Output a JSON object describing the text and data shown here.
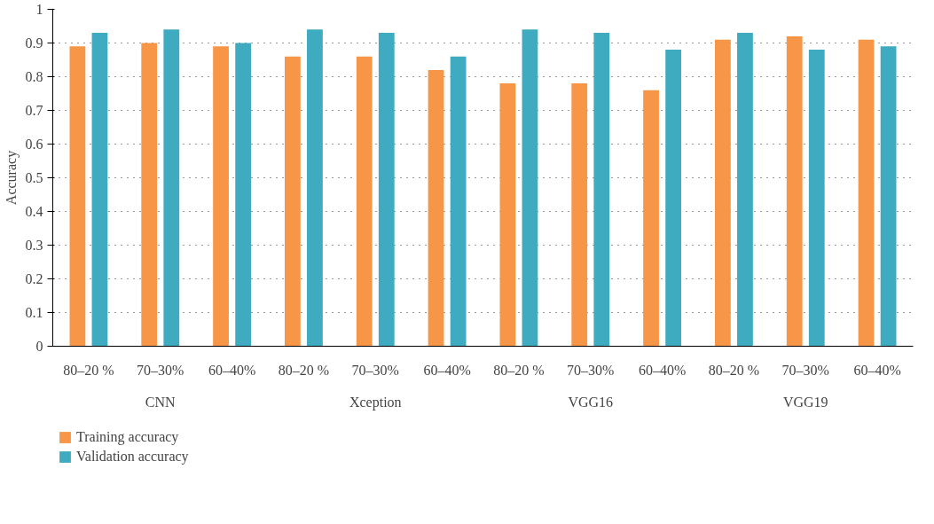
{
  "chart_data": {
    "type": "bar",
    "ylabel": "Accuracy",
    "categories": [
      "80–20 %",
      "70–30%",
      "60–40%",
      "80–20 %",
      "70–30%",
      "60–40%",
      "80–20 %",
      "70–30%",
      "60–40%",
      "80–20 %",
      "70–30%",
      "60–40%"
    ],
    "annotations": [
      "CNN",
      "Xception",
      "VGG16",
      "VGG19"
    ],
    "series": [
      {
        "name": "Training accuracy",
        "color": "#f79646",
        "values": [
          0.89,
          0.9,
          0.89,
          0.86,
          0.86,
          0.82,
          0.78,
          0.78,
          0.76,
          0.91,
          0.92,
          0.91
        ]
      },
      {
        "name": "Validation accuracy",
        "color": "#3eabc0",
        "values": [
          0.93,
          0.94,
          0.9,
          0.94,
          0.93,
          0.86,
          0.94,
          0.93,
          0.88,
          0.93,
          0.88,
          0.89
        ]
      }
    ],
    "ylim": [
      0,
      1
    ],
    "yticks": [
      0,
      {
        "value": 0.1,
        "label": "0.1"
      },
      {
        "value": 0.2,
        "label": "0.2"
      },
      {
        "value": 0.3,
        "label": "0.3"
      },
      {
        "value": 0.4,
        "label": "0.4"
      },
      {
        "value": 0.5,
        "label": "0.5"
      },
      {
        "value": 0.6,
        "label": "0.6"
      },
      {
        "value": 0.7,
        "label": "0.7"
      },
      {
        "value": 0.8,
        "label": "0.8"
      },
      {
        "value": 0.9,
        "label": "0.9"
      },
      1
    ],
    "grid": "y",
    "legend": "bottom"
  }
}
